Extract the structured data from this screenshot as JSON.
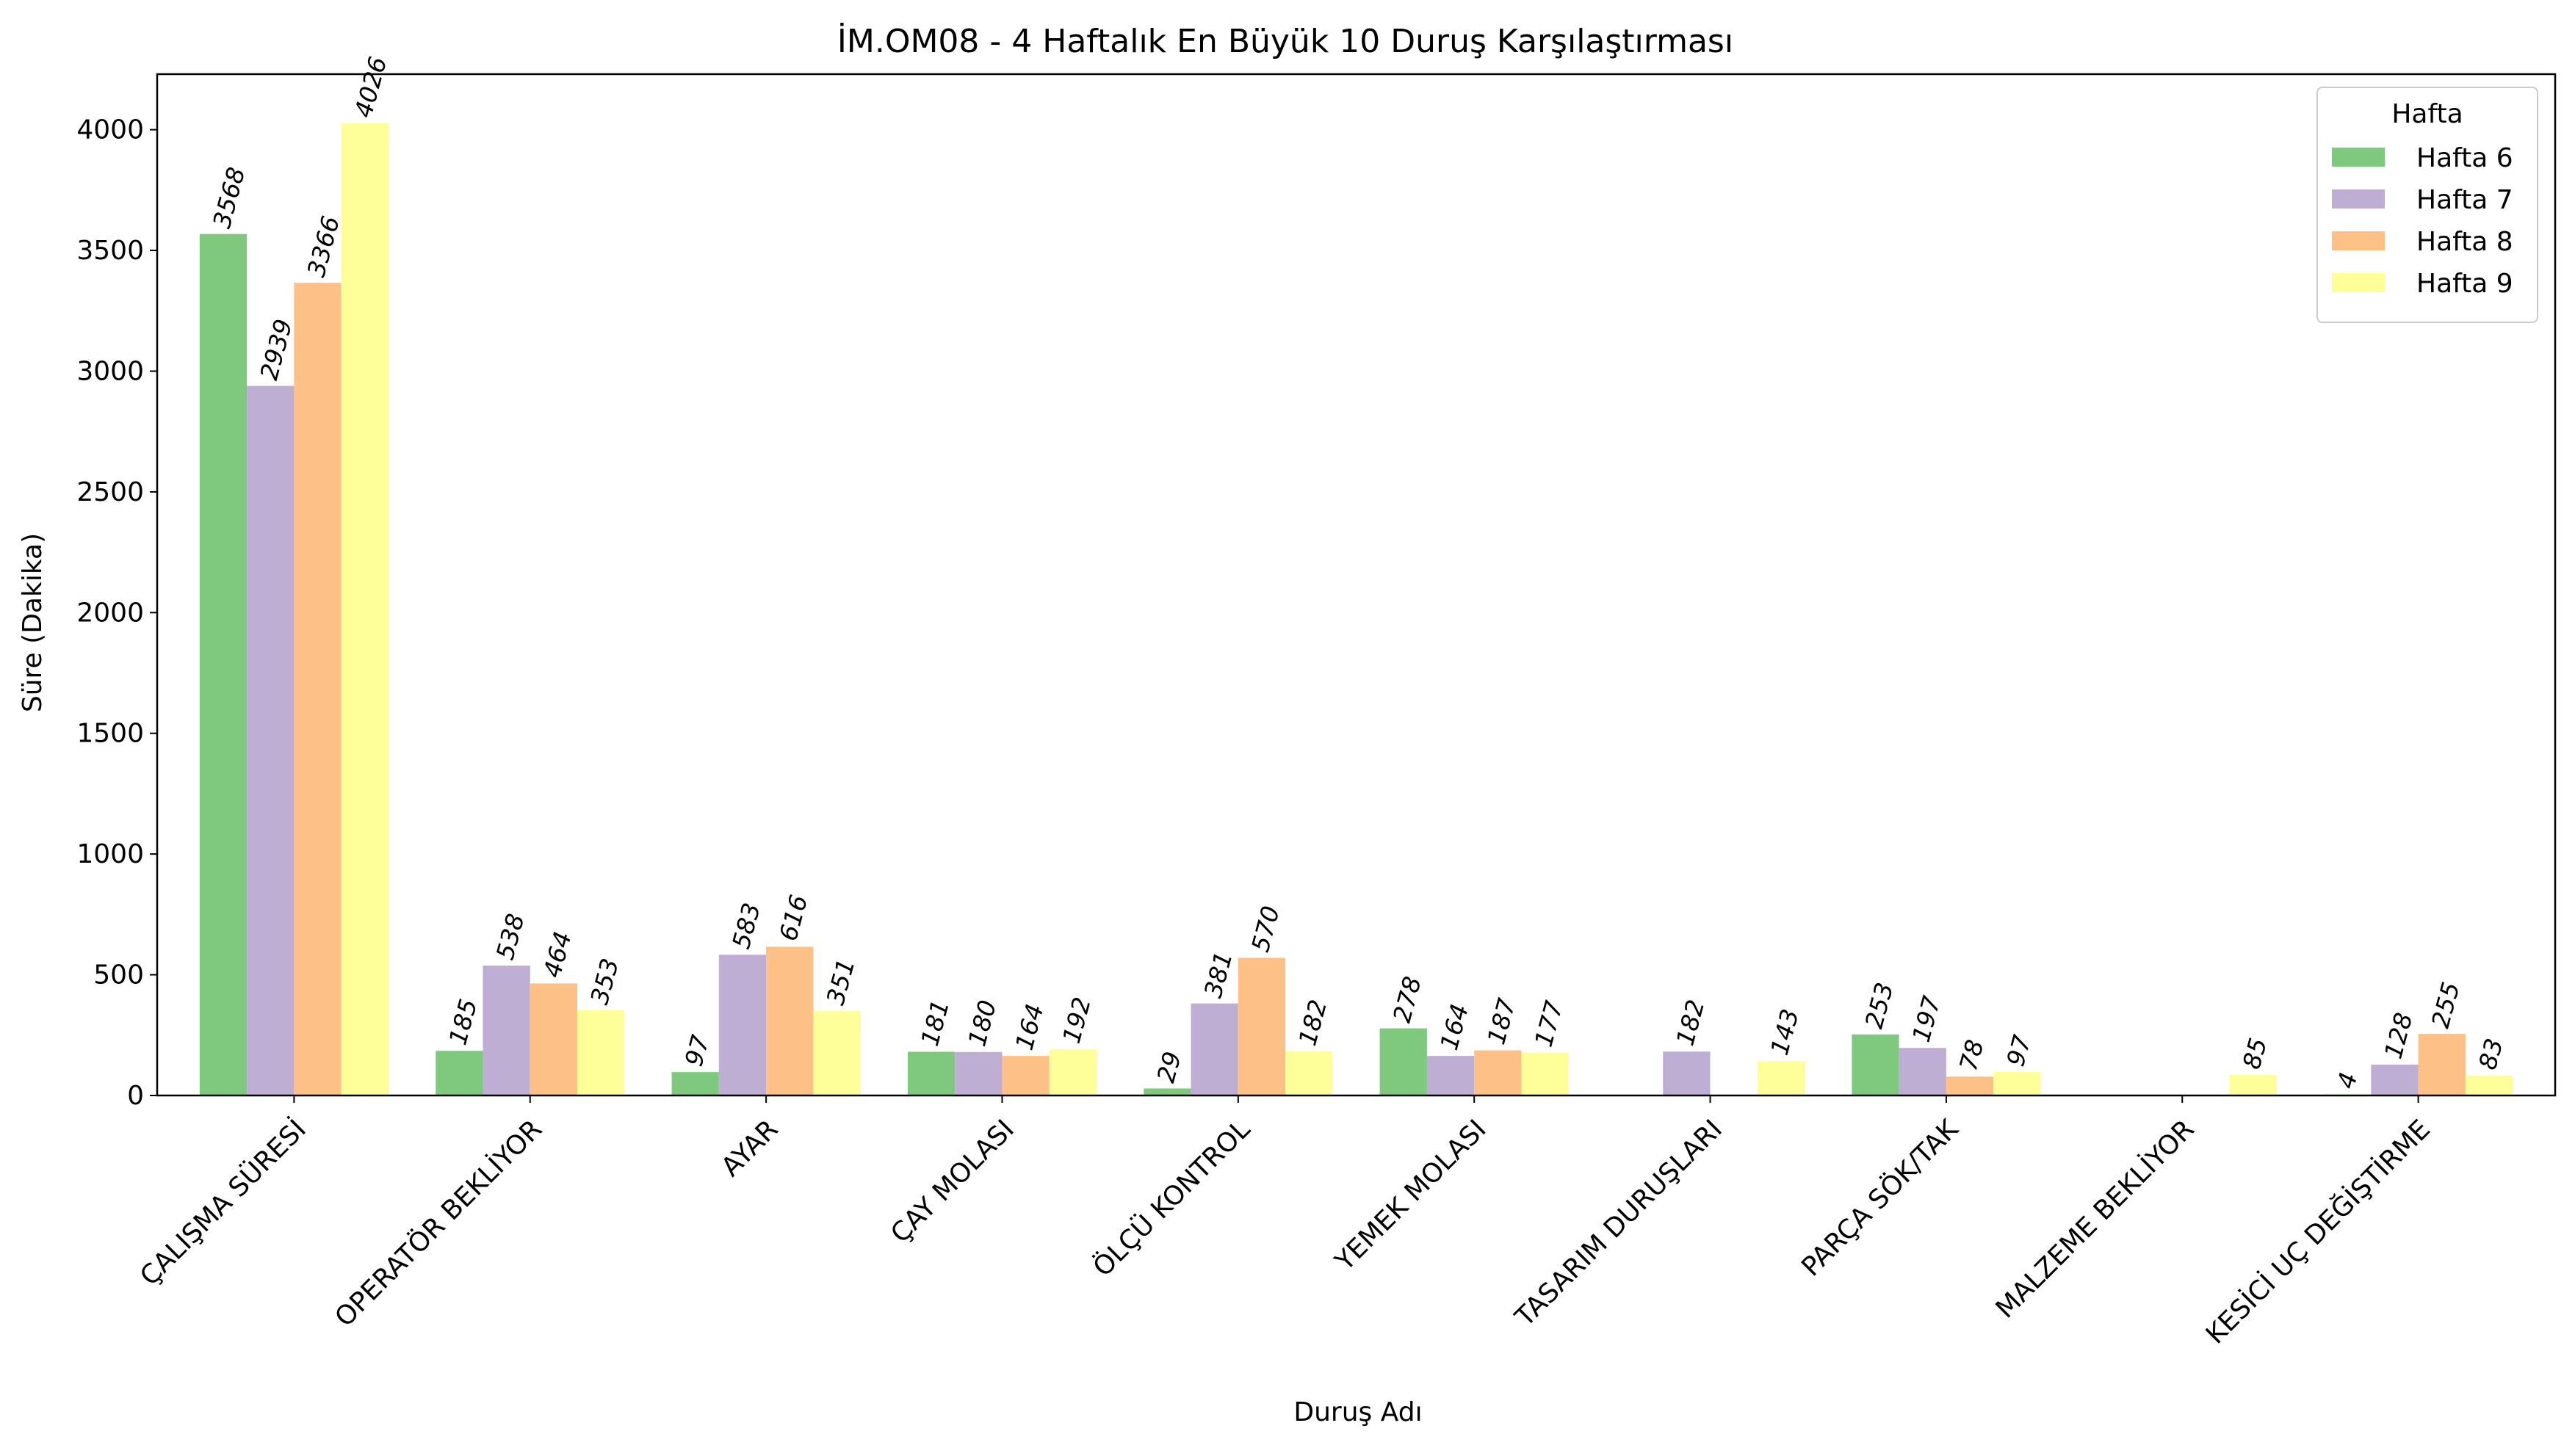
{
  "chart_data": {
    "type": "bar",
    "title": "İM.OM08 - 4 Haftalık En Büyük 10 Duruş Karşılaştırması",
    "xlabel": "Duruş Adı",
    "ylabel": "Süre (Dakika)",
    "ylim": [
      0,
      4230
    ],
    "yticks": [
      0,
      500,
      1000,
      1500,
      2000,
      2500,
      3000,
      3500,
      4000
    ],
    "grid": false,
    "legend": {
      "title": "Hafta",
      "position": "top-right"
    },
    "categories": [
      "ÇALIŞMA SÜRESİ",
      "OPERATÖR BEKLİYOR",
      "AYAR",
      "ÇAY MOLASI",
      "ÖLÇÜ KONTROL",
      "YEMEK MOLASI",
      "TASARIM DURUŞLARI",
      "PARÇA SÖK/TAK",
      "MALZEME BEKLİYOR",
      "KESİCİ UÇ DEĞİŞTİRME"
    ],
    "series": [
      {
        "name": "Hafta 6",
        "color": "#7fc97f",
        "values": [
          3568,
          185,
          97,
          181,
          29,
          278,
          null,
          253,
          null,
          4
        ]
      },
      {
        "name": "Hafta 7",
        "color": "#beaed4",
        "values": [
          2939,
          538,
          583,
          180,
          381,
          164,
          182,
          197,
          null,
          128
        ]
      },
      {
        "name": "Hafta 8",
        "color": "#fdc086",
        "values": [
          3366,
          464,
          616,
          164,
          570,
          187,
          null,
          78,
          null,
          255
        ]
      },
      {
        "name": "Hafta 9",
        "color": "#ffff99",
        "values": [
          4026,
          353,
          351,
          192,
          182,
          177,
          143,
          97,
          85,
          83
        ]
      }
    ]
  }
}
